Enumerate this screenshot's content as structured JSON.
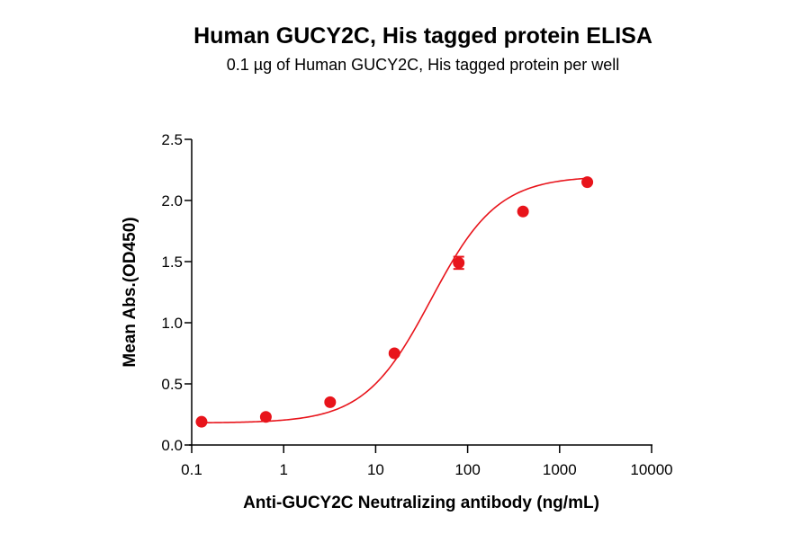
{
  "chart_data": {
    "type": "scatter",
    "title": "Human GUCY2C, His tagged protein ELISA",
    "subtitle": "0.1 µg of Human GUCY2C, His tagged protein per well",
    "xlabel": "Anti-GUCY2C Neutralizing antibody (ng/mL)",
    "ylabel": "Mean Abs.(OD450)",
    "x_scale": "log",
    "xlim": [
      0.1,
      10000
    ],
    "ylim": [
      0,
      2.5
    ],
    "x_tick_labels": [
      "0.1",
      "1",
      "10",
      "100",
      "1000",
      "10000"
    ],
    "x_tick_values": [
      0.1,
      1,
      10,
      100,
      1000,
      10000
    ],
    "y_tick_labels": [
      "0.0",
      "0.5",
      "1.0",
      "1.5",
      "2.0",
      "2.5"
    ],
    "y_tick_values": [
      0,
      0.5,
      1.0,
      1.5,
      2.0,
      2.5
    ],
    "grid": false,
    "color": "#e8141b",
    "series": [
      {
        "x": [
          0.128,
          0.64,
          3.2,
          16,
          80,
          400,
          2000
        ],
        "y": [
          0.19,
          0.23,
          0.35,
          0.75,
          1.49,
          1.91,
          2.15
        ],
        "error": [
          0.01,
          0.01,
          0.01,
          0.01,
          0.05,
          0.01,
          0.01
        ],
        "fit_curve": {
          "model": "4PL",
          "bottom": 0.18,
          "top": 2.2,
          "ec50": 40,
          "hill": 1.2
        }
      }
    ]
  }
}
